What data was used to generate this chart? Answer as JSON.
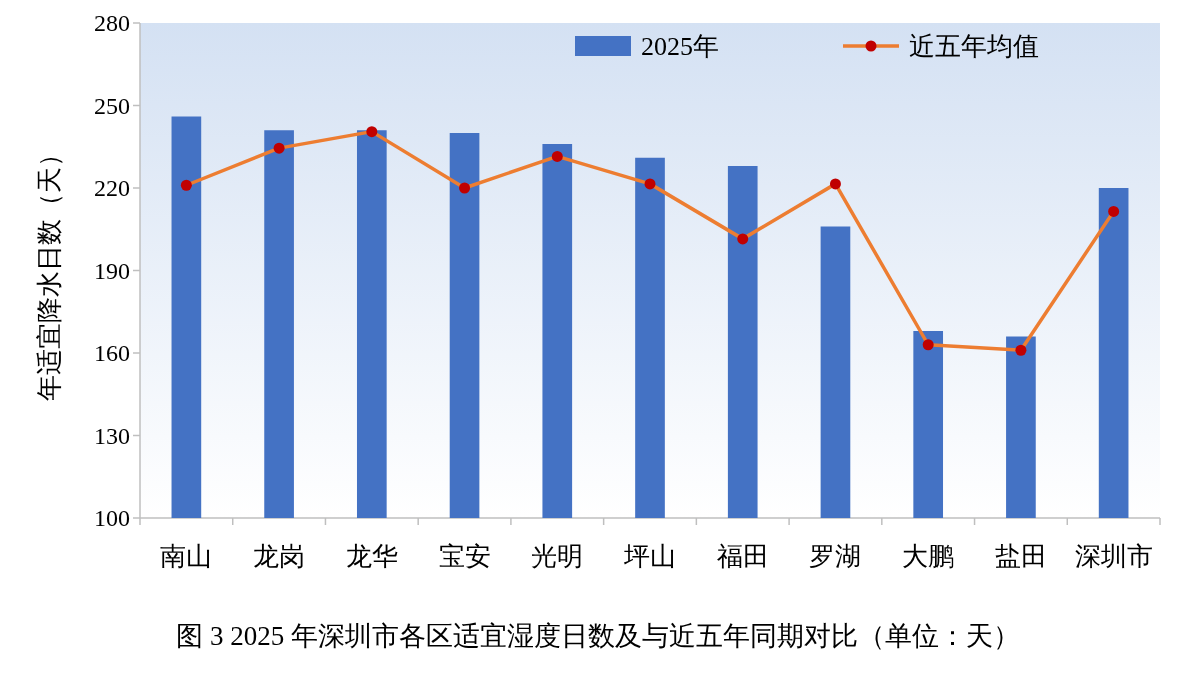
{
  "chart_data": {
    "type": "bar",
    "title": "图 3 2025 年深圳市各区适宜湿度日数及与近五年同期对比（单位：天）",
    "ylabel": "年适宜降水日数（天）",
    "categories": [
      "南山",
      "龙岗",
      "龙华",
      "宝安",
      "光明",
      "坪山",
      "福田",
      "罗湖",
      "大鹏",
      "盐田",
      "深圳市"
    ],
    "series": [
      {
        "name": "2025年",
        "color": "#4472c4",
        "values": [
          246,
          241,
          241,
          240,
          236,
          231,
          228,
          206,
          168,
          166,
          220
        ]
      },
      {
        "name": "近五年均值",
        "type": "line",
        "color": "#ed7d31",
        "marker": "circle",
        "colors": [
          "#c00000",
          "#c00000",
          "#c00000",
          "#c00000",
          "#c00000",
          "#c00000",
          "#c00000",
          "#c00000",
          "#c00000",
          "#c00000",
          "#c00000"
        ],
        "values": [
          221,
          234.5,
          240.5,
          220,
          231.5,
          221.5,
          201.5,
          221.5,
          163,
          161,
          211.5
        ]
      }
    ],
    "ylim": [
      100,
      280
    ],
    "yticks": [
      100,
      130,
      160,
      190,
      220,
      250,
      280
    ],
    "grid": false,
    "legend": "top right"
  }
}
